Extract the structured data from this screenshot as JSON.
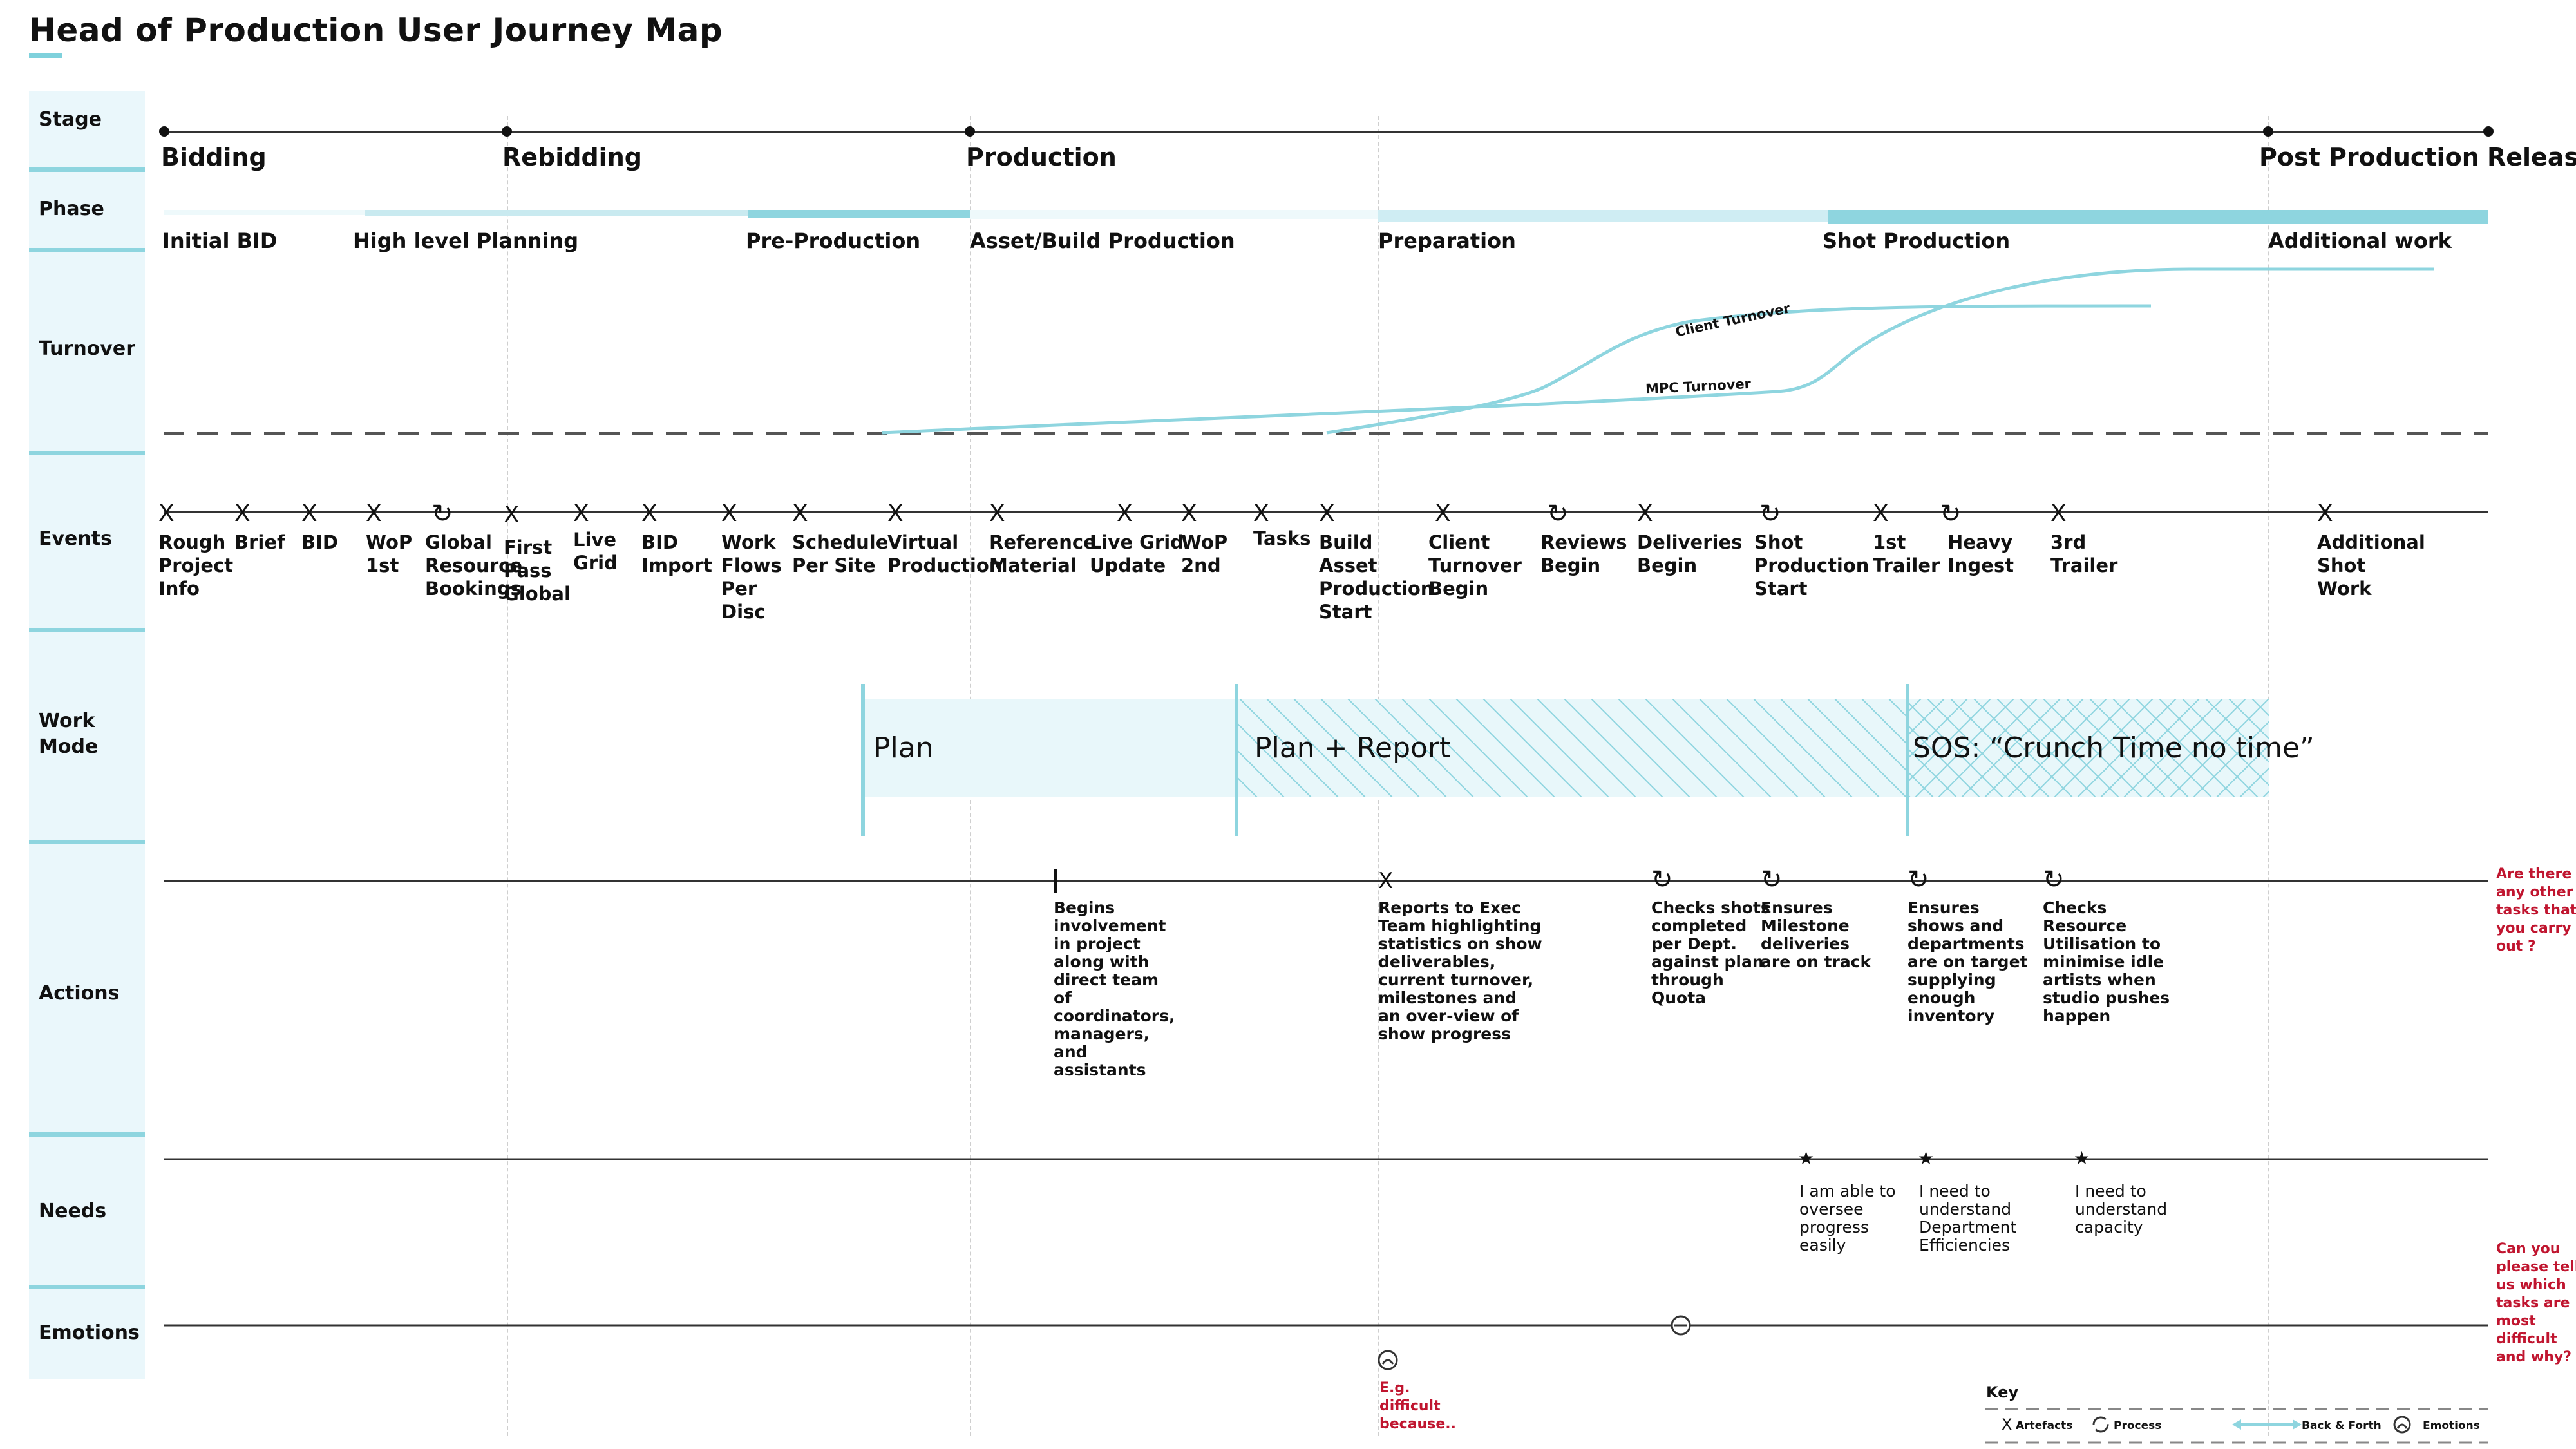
{
  "title": "Head of Production User Journey Map",
  "colors": {
    "accent": "#8ed5df",
    "accent_light": "#d6f0f5",
    "accent_pale": "#eaf7fb",
    "red": "#c0152f"
  },
  "rows": {
    "stage": "Stage",
    "phase": "Phase",
    "turnover": "Turnover",
    "events": "Events",
    "work_mode": "Work\nMode",
    "actions": "Actions",
    "needs": "Needs",
    "emotions": "Emotions"
  },
  "stages": [
    "Bidding",
    "Rebidding",
    "Production",
    "Post Production",
    "Release"
  ],
  "phases": [
    "Initial BID",
    "High level Planning",
    "Pre-Production",
    "Asset/Build Production",
    "Preparation",
    "Shot Production",
    "Additional work"
  ],
  "turnover": {
    "client_label": "Client Turnover",
    "mpc_label": "MPC Turnover"
  },
  "events": [
    {
      "icon": "artefact-icon",
      "label": "Rough\nProject\nInfo"
    },
    {
      "icon": "artefact-icon",
      "label": "Brief"
    },
    {
      "icon": "artefact-icon",
      "label": "BID"
    },
    {
      "icon": "artefact-icon",
      "label": "WoP\n1st"
    },
    {
      "icon": "process-icon",
      "label": "Global\nResource\nBookings"
    },
    {
      "icon": "artefact-icon",
      "label": "First\nPass\nGlobal"
    },
    {
      "icon": "artefact-icon",
      "label": "Live\nGrid"
    },
    {
      "icon": "artefact-icon",
      "label": "BID\nImport"
    },
    {
      "icon": "artefact-icon",
      "label": "Work\nFlows\nPer\nDisc"
    },
    {
      "icon": "artefact-icon",
      "label": "Schedule\nPer Site"
    },
    {
      "icon": "artefact-icon",
      "label": "Virtual\nProduction"
    },
    {
      "icon": "artefact-icon",
      "label": "Reference\nMaterial"
    },
    {
      "icon": "artefact-icon",
      "label": "Live Grid\nUpdate"
    },
    {
      "icon": "artefact-icon",
      "label": "WoP\n2nd"
    },
    {
      "icon": "artefact-icon",
      "label": "Tasks"
    },
    {
      "icon": "artefact-icon",
      "label": "Build\nAsset\nProduction\nStart"
    },
    {
      "icon": "artefact-icon",
      "label": "Client\nTurnover\nBegin"
    },
    {
      "icon": "process-icon",
      "label": "Reviews\nBegin"
    },
    {
      "icon": "artefact-icon",
      "label": "Deliveries\nBegin"
    },
    {
      "icon": "process-icon",
      "label": "Shot\nProduction\nStart"
    },
    {
      "icon": "artefact-icon",
      "label": "1st\nTrailer"
    },
    {
      "icon": "process-icon",
      "label": "Heavy\nIngest"
    },
    {
      "icon": "artefact-icon",
      "label": "3rd\nTrailer"
    },
    {
      "icon": "artefact-icon",
      "label": "Additional\nShot\nWork"
    }
  ],
  "work_modes": [
    "Plan",
    "Plan + Report",
    "SOS: “Crunch Time no time”"
  ],
  "actions": [
    {
      "icon": "milestone-icon",
      "label": "Begins\ninvolvement\nin project\nalong with\ndirect team\nof\ncoordinators,\nmanagers,\nand\nassistants"
    },
    {
      "icon": "artefact-icon",
      "label": "Reports to Exec\nTeam highlighting\nstatistics on show\ndeliverables,\ncurrent turnover,\nmilestones and\nan over-view of\nshow progress"
    },
    {
      "icon": "process-icon",
      "label": "Checks shots\ncompleted\nper Dept.\nagainst plan\nthrough\nQuota"
    },
    {
      "icon": "process-icon",
      "label": "Ensures\nMilestone\ndeliveries\nare on track"
    },
    {
      "icon": "process-icon",
      "label": "Ensures\nshows and\ndepartments\nare on target\nsupplying\nenough\ninventory"
    },
    {
      "icon": "process-icon",
      "label": "Checks\nResource\nUtilisation to\nminimise idle\nartists when\nstudio pushes\nhappen"
    }
  ],
  "actions_question": "Are there\nany other\ntasks that\nyou carry\nout ?",
  "needs": [
    {
      "icon": "star-icon",
      "label": "I am able to\noversee\nprogress\neasily"
    },
    {
      "icon": "star-icon",
      "label": "I need to\nunderstand\nDepartment\nEfficiencies"
    },
    {
      "icon": "star-icon",
      "label": "I need to\nunderstand\ncapacity"
    }
  ],
  "needs_question": "Can you\nplease tell\nus which\ntasks are\nmost\ndifficult\nand why?",
  "emotions": {
    "note": "E.g.\ndifficult\nbecause.."
  },
  "key": {
    "title": "Key",
    "artefacts": "Artefacts",
    "process": "Process",
    "back_forth": "Back & Forth",
    "emotions": "Emotions"
  }
}
